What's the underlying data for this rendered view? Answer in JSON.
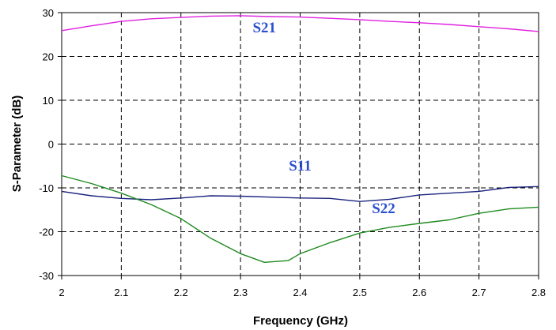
{
  "chart_data": {
    "type": "line",
    "title": "",
    "xlabel": "Frequency (GHz)",
    "ylabel": "S-Parameter (dB)",
    "xlim": [
      2,
      2.8
    ],
    "ylim": [
      -30,
      30
    ],
    "xticks": [
      "2",
      "2.1",
      "2.2",
      "2.3",
      "2.4",
      "2.5",
      "2.6",
      "2.7",
      "2.8"
    ],
    "yticks": [
      "30",
      "20",
      "10",
      "0",
      "-10",
      "-20",
      "-30"
    ],
    "grid": true,
    "grid_style": "dashed",
    "legend": "none",
    "series": [
      {
        "name": "S21",
        "color": "#e020e0",
        "x": [
          2.0,
          2.05,
          2.1,
          2.15,
          2.2,
          2.25,
          2.3,
          2.35,
          2.4,
          2.45,
          2.5,
          2.55,
          2.6,
          2.65,
          2.7,
          2.75,
          2.8
        ],
        "values": [
          25.9,
          27.0,
          28.0,
          28.6,
          28.9,
          29.2,
          29.3,
          29.1,
          29.0,
          28.7,
          28.4,
          28.0,
          27.7,
          27.3,
          26.8,
          26.3,
          25.7
        ]
      },
      {
        "name": "S11",
        "color": "#1a237e",
        "x": [
          2.0,
          2.05,
          2.1,
          2.15,
          2.2,
          2.25,
          2.3,
          2.35,
          2.4,
          2.45,
          2.5,
          2.55,
          2.6,
          2.65,
          2.7,
          2.75,
          2.8
        ],
        "values": [
          -10.8,
          -11.8,
          -12.4,
          -12.7,
          -12.3,
          -11.8,
          -11.9,
          -12.1,
          -12.3,
          -12.4,
          -13.1,
          -12.6,
          -11.6,
          -11.2,
          -10.8,
          -9.9,
          -9.7
        ]
      },
      {
        "name": "S22",
        "color": "#1f8a1f",
        "x": [
          2.0,
          2.05,
          2.1,
          2.15,
          2.2,
          2.25,
          2.3,
          2.34,
          2.38,
          2.4,
          2.45,
          2.5,
          2.55,
          2.6,
          2.65,
          2.7,
          2.75,
          2.8
        ],
        "values": [
          -7.2,
          -9.0,
          -11.2,
          -13.8,
          -17.0,
          -21.5,
          -25.0,
          -27.0,
          -26.6,
          -25.0,
          -22.5,
          -20.3,
          -19.0,
          -18.1,
          -17.3,
          -15.8,
          -14.8,
          -14.4
        ]
      }
    ],
    "annotations": [
      {
        "text": "S21",
        "x": 2.34,
        "y": 25.5
      },
      {
        "text": "S11",
        "x": 2.4,
        "y": -6.0
      },
      {
        "text": "S22",
        "x": 2.54,
        "y": -15.8
      }
    ]
  }
}
